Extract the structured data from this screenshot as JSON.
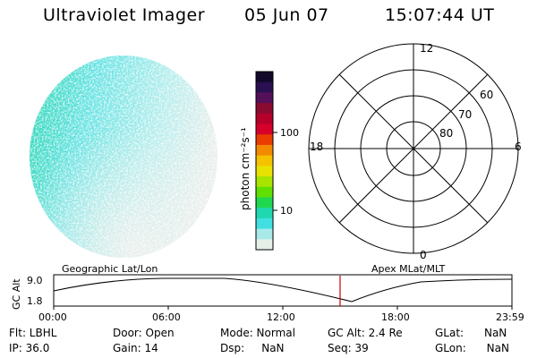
{
  "header": {
    "instrument": "Ultraviolet Imager",
    "date": "05 Jun 07",
    "time": "15:07:44 UT"
  },
  "colorbar": {
    "unit_label": "photon cm⁻²s⁻¹",
    "ticks": [
      "100",
      "10"
    ],
    "colors": [
      "#12082a",
      "#2a1050",
      "#55105a",
      "#8a0a30",
      "#b5002a",
      "#d6002a",
      "#ea3d00",
      "#f28a00",
      "#f5c200",
      "#e8e200",
      "#a8e400",
      "#60e000",
      "#20d850",
      "#20d8b0",
      "#40e0e0",
      "#a8eaea",
      "#e6eee8"
    ]
  },
  "polar": {
    "hour_labels": [
      "12",
      "18",
      "6",
      "0"
    ],
    "lat_labels": [
      "60",
      "70",
      "80"
    ]
  },
  "timeline": {
    "left_title": "Geographic Lat/Lon",
    "right_title": "Apex MLat/MLT",
    "axis_label": "GC Alt",
    "y_ticks": [
      "9.0",
      "1.8"
    ],
    "x_ticks": [
      "00:00",
      "06:00",
      "12:00",
      "18:00",
      "23:59"
    ],
    "marker_color": "#cc0000"
  },
  "info": {
    "flt": "Flt: LBHL",
    "ip": "IP: 36.0",
    "door": "Door: Open",
    "gain": "Gain: 14",
    "mode": "Mode: Normal",
    "dsp": "Dsp:     NaN",
    "gcalt": "GC Alt: 2.4 Re",
    "seq": "Seq: 39",
    "glat": "GLat:      NaN",
    "glon": "GLon:      NaN"
  }
}
